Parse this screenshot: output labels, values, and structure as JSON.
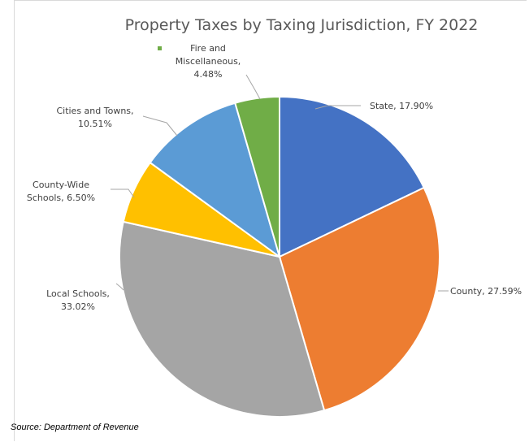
{
  "chart_data": {
    "type": "pie",
    "title": "Property Taxes by Taxing Jurisdiction, FY 2022",
    "slices": [
      {
        "name": "State",
        "value": 17.9,
        "color": "#4472c4",
        "label_lines": [
          "State, 17.90%"
        ]
      },
      {
        "name": "County",
        "value": 27.59,
        "color": "#ed7d31",
        "label_lines": [
          "County, 27.59%"
        ]
      },
      {
        "name": "Local Schools",
        "value": 33.02,
        "color": "#a5a5a5",
        "label_lines": [
          "Local Schools,",
          "33.02%"
        ]
      },
      {
        "name": "County-Wide Schools",
        "value": 6.5,
        "color": "#ffc000",
        "label_lines": [
          "County-Wide",
          "Schools, 6.50%"
        ]
      },
      {
        "name": "Cities and Towns",
        "value": 10.51,
        "color": "#5b9bd5",
        "label_lines": [
          "Cities and Towns,",
          "10.51%"
        ]
      },
      {
        "name": "Fire and Miscellaneous",
        "value": 4.48,
        "color": "#70ad47",
        "label_lines": [
          "Fire and",
          "Miscellaneous,",
          "4.48%"
        ]
      }
    ]
  },
  "source_note": "Source: Department of Revenue"
}
